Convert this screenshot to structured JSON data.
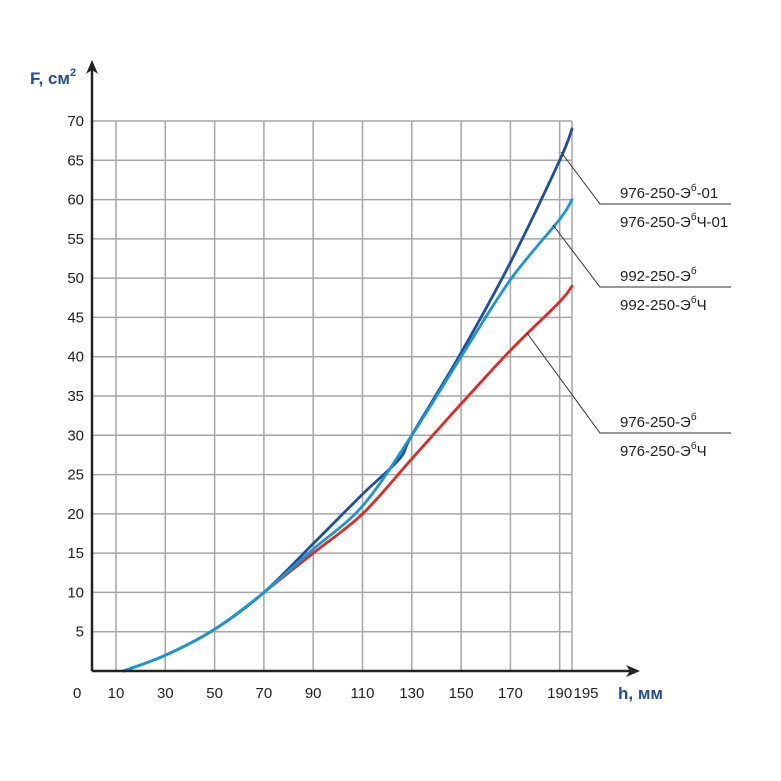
{
  "chart_data": {
    "type": "line",
    "xlabel": "h, мм",
    "ylabel": "F, см",
    "ylabel_sup": "2",
    "origin_label": "0",
    "xlim": [
      0,
      195
    ],
    "ylim": [
      0,
      70
    ],
    "grid": true,
    "x_ticks": [
      10,
      30,
      50,
      70,
      90,
      110,
      130,
      150,
      170,
      190,
      195
    ],
    "y_ticks": [
      5,
      10,
      15,
      20,
      25,
      30,
      35,
      40,
      45,
      50,
      55,
      60,
      65,
      70
    ],
    "series": [
      {
        "labels": [
          {
            "main": "976-250-Э",
            "sup": "б",
            "tail": "-01"
          },
          {
            "main": "976-250-Э",
            "sup": "б",
            "tail": "Ч-01"
          }
        ],
        "color": "#1f4e9c",
        "x": [
          13,
          30,
          50,
          70,
          90,
          110,
          125,
          130,
          150,
          170,
          190,
          195
        ],
        "y": [
          0,
          2,
          5.3,
          10,
          16.2,
          22.5,
          27,
          30,
          40.5,
          52,
          65,
          69
        ]
      },
      {
        "labels": [
          {
            "main": "992-250-Э",
            "sup": "б",
            "tail": ""
          },
          {
            "main": "992-250-Э",
            "sup": "б",
            "tail": "Ч"
          }
        ],
        "color": "#1a96d4",
        "x": [
          13,
          30,
          50,
          70,
          90,
          110,
          130,
          150,
          170,
          190,
          195
        ],
        "y": [
          0,
          2,
          5.3,
          10,
          15.5,
          21,
          30,
          40,
          49.8,
          57.5,
          60
        ]
      },
      {
        "labels": [
          {
            "main": "976-250-Э",
            "sup": "б",
            "tail": ""
          },
          {
            "main": "976-250-Э",
            "sup": "б",
            "tail": "Ч"
          }
        ],
        "color": "#e02a2a",
        "x": [
          70,
          90,
          110,
          130,
          150,
          170,
          190,
          195
        ],
        "y": [
          10,
          15,
          20,
          27,
          34,
          40.8,
          47,
          49
        ]
      }
    ]
  }
}
